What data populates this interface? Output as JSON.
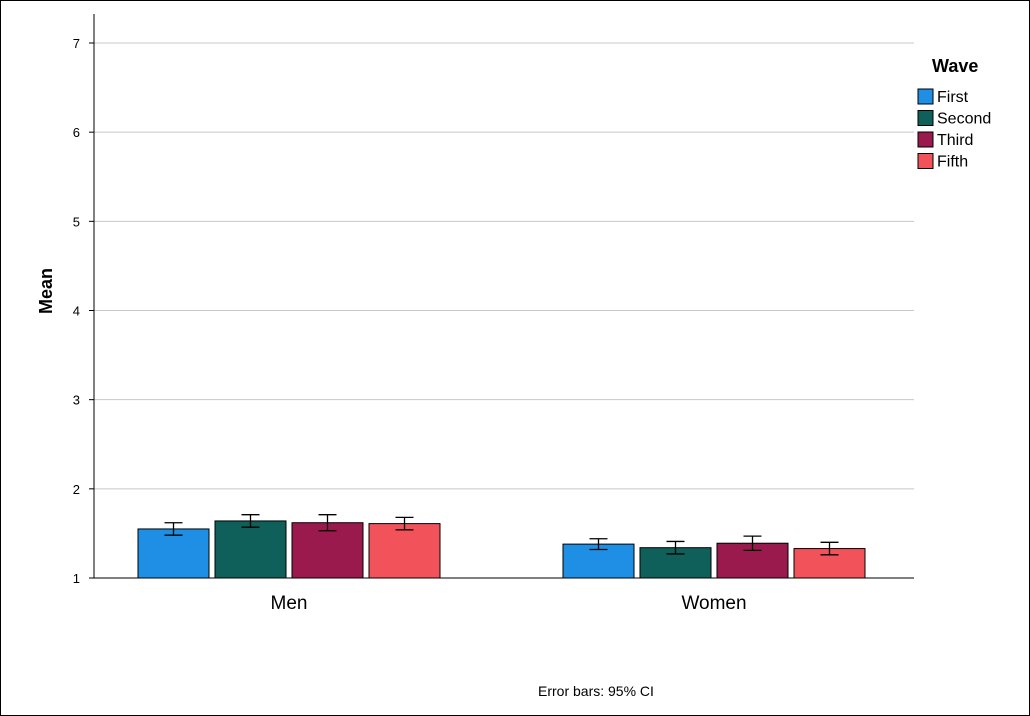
{
  "chart_data": {
    "type": "bar",
    "categories": [
      "Men",
      "Women"
    ],
    "ylabel": "Mean",
    "ylim": [
      1,
      7
    ],
    "yticks": [
      1,
      2,
      3,
      4,
      5,
      6,
      7
    ],
    "grid": true,
    "legend": {
      "title": "Wave",
      "placement": "top-right"
    },
    "series": [
      {
        "name": "First",
        "color": "#1f8fe5",
        "values": [
          1.55,
          1.38
        ],
        "ci_low": [
          1.48,
          1.32
        ],
        "ci_high": [
          1.62,
          1.44
        ]
      },
      {
        "name": "Second",
        "color": "#0f5f5a",
        "values": [
          1.64,
          1.34
        ],
        "ci_low": [
          1.57,
          1.27
        ],
        "ci_high": [
          1.71,
          1.41
        ]
      },
      {
        "name": "Third",
        "color": "#9b1a4d",
        "values": [
          1.62,
          1.39
        ],
        "ci_low": [
          1.53,
          1.31
        ],
        "ci_high": [
          1.71,
          1.47
        ]
      },
      {
        "name": "Fifth",
        "color": "#f2535a",
        "values": [
          1.61,
          1.33
        ],
        "ci_low": [
          1.54,
          1.26
        ],
        "ci_high": [
          1.68,
          1.4
        ]
      }
    ],
    "footnote": "Error bars: 95% CI"
  }
}
